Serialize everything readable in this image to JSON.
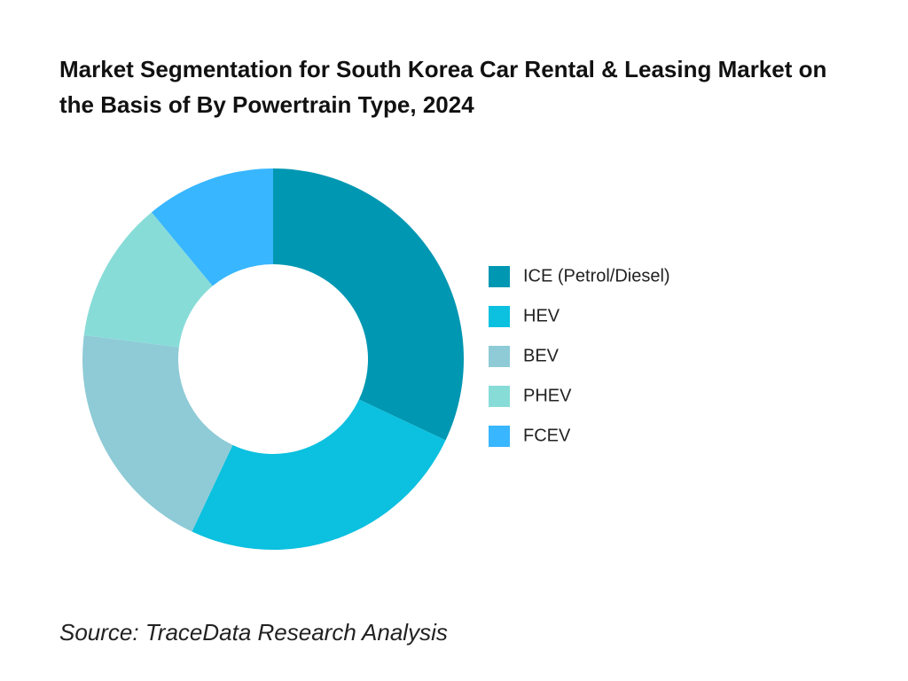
{
  "chart_data": {
    "type": "donut",
    "title": "Market Segmentation for South Korea Car Rental & Leasing Market on the Basis of By Powertrain Type, 2024",
    "categories": [
      "ICE (Petrol/Diesel)",
      "HEV",
      "BEV",
      "PHEV",
      "FCEV"
    ],
    "values": [
      32,
      25,
      20,
      12,
      11
    ],
    "colors": [
      "#0097b2",
      "#0cc0df",
      "#8ecbd6",
      "#88dcd8",
      "#38b6ff"
    ],
    "source": "Source: TraceData Research Analysis"
  }
}
